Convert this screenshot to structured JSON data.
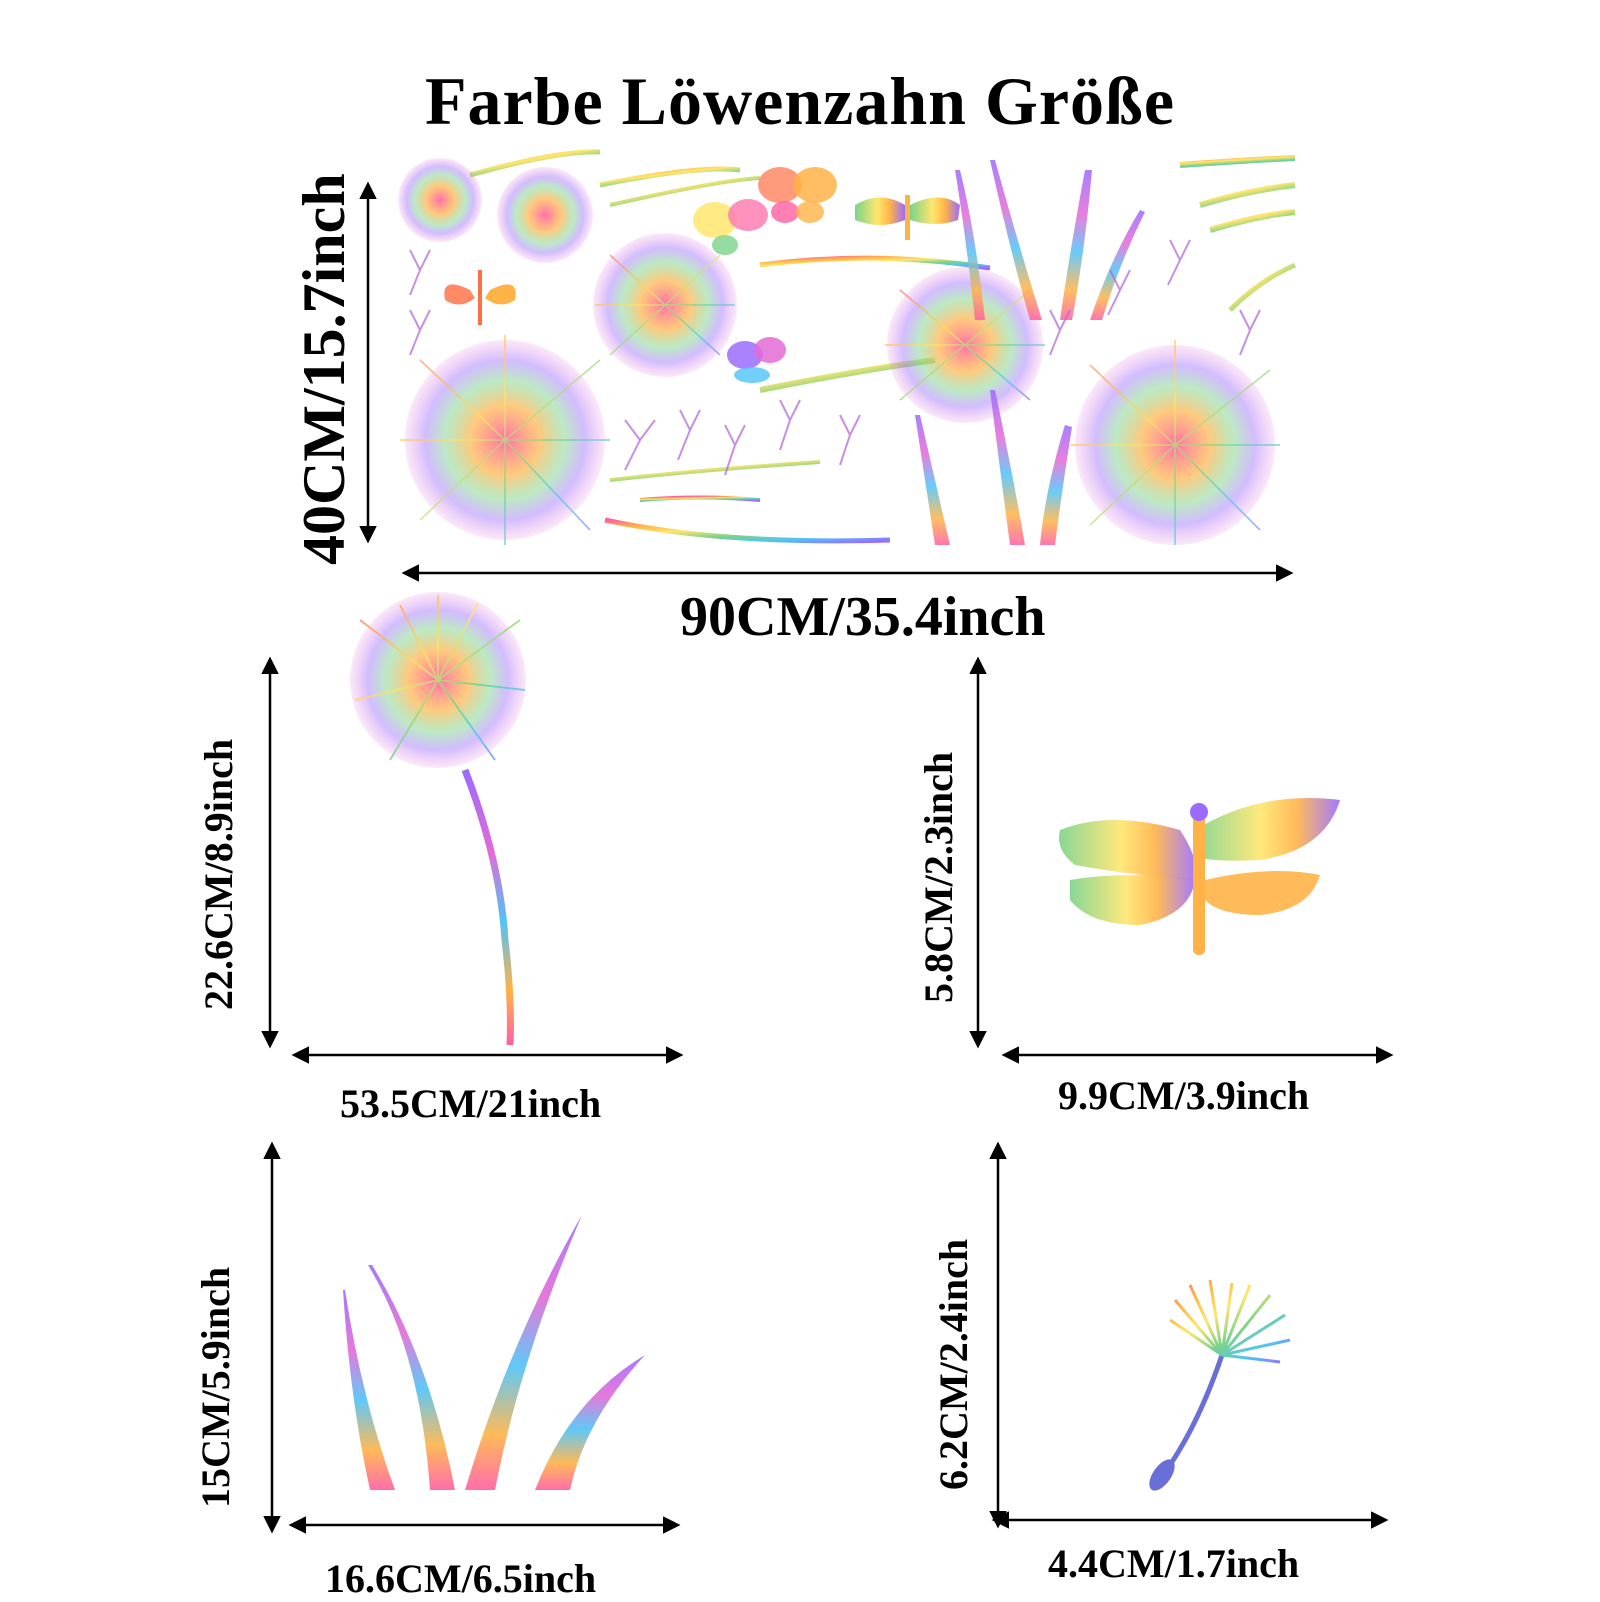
{
  "title": "Farbe Löwenzahn Größe",
  "main_sheet": {
    "height_label": "40CM/15.7inch",
    "width_label": "90CM/35.4inch"
  },
  "dandelion": {
    "height_label": "22.6CM/8.9inch",
    "width_label": "53.5CM/21inch"
  },
  "dragonfly": {
    "height_label": "5.8CM/2.3inch",
    "width_label": "9.9CM/3.9inch"
  },
  "grass": {
    "height_label": "15CM/5.9inch",
    "width_label": "16.6CM/6.5inch"
  },
  "seed": {
    "height_label": "6.2CM/2.4inch",
    "width_label": "4.4CM/1.7inch"
  },
  "colors": {
    "rainbow": [
      "#ff5fa2",
      "#ffb347",
      "#ffe66d",
      "#7bd389",
      "#4fc3f7",
      "#9b6bff",
      "#e36bd6"
    ],
    "arrow": "#000000"
  }
}
